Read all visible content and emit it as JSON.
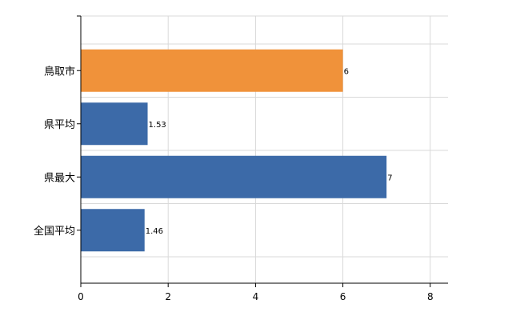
{
  "chart_data": {
    "type": "bar",
    "orientation": "horizontal",
    "categories": [
      "鳥取市",
      "県平均",
      "県最大",
      "全国平均"
    ],
    "values": [
      6,
      1.53,
      7,
      1.46
    ],
    "value_labels": [
      "6",
      "1.53",
      "7",
      "1.46"
    ],
    "bar_colors": [
      "#f0923a",
      "#3c6aa8",
      "#3c6aa8",
      "#3c6aa8"
    ],
    "xlim": [
      0,
      8.4
    ],
    "xticks": [
      0,
      2,
      4,
      6,
      8
    ],
    "xtick_labels": [
      "0",
      "2",
      "4",
      "6",
      "8"
    ],
    "grid": true,
    "title": "",
    "xlabel": "",
    "ylabel": ""
  }
}
